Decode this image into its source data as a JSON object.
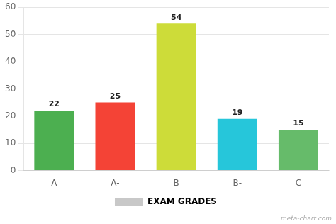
{
  "chart_data": {
    "type": "bar",
    "categories": [
      "A",
      "A-",
      "B",
      "B-",
      "C"
    ],
    "series": [
      {
        "name": "EXAM GRADES",
        "color": "#c8c8c8",
        "colors": [
          "#4caf50",
          "#f44336",
          "#cddc39",
          "#26c6da",
          "#66bb6a"
        ],
        "values": [
          22,
          25,
          54,
          19,
          15
        ]
      }
    ],
    "ylim": [
      0,
      60
    ],
    "yticks": [
      0,
      10,
      20,
      30,
      40,
      50,
      60
    ],
    "grid": true,
    "legend": "bottom",
    "data_labels": true,
    "annotations": [
      "meta-chart.com"
    ]
  }
}
